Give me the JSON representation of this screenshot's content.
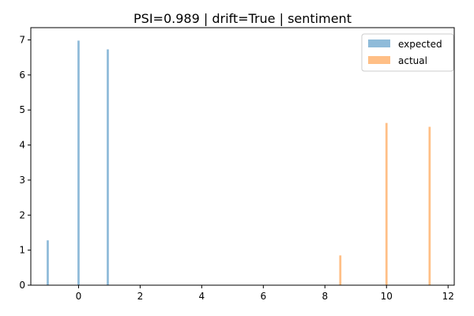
{
  "chart_data": {
    "type": "bar",
    "title": "PSI=0.989 | drift=True | sentiment",
    "xlabel": "",
    "ylabel": "",
    "xlim": [
      -1.55,
      12.2
    ],
    "ylim": [
      0,
      7.35
    ],
    "xticks": [
      0,
      2,
      4,
      6,
      8,
      10,
      12
    ],
    "yticks": [
      0,
      1,
      2,
      3,
      4,
      5,
      6,
      7
    ],
    "legend_position": "top-right",
    "grid": false,
    "bar_width": 0.07,
    "series": [
      {
        "name": "expected",
        "color": "#1f77b4",
        "opacity": 0.5,
        "points": [
          {
            "x": -1.0,
            "y": 1.28
          },
          {
            "x": 0.0,
            "y": 6.98
          },
          {
            "x": 0.95,
            "y": 6.73
          }
        ]
      },
      {
        "name": "actual",
        "color": "#ff7f0e",
        "opacity": 0.5,
        "points": [
          {
            "x": 8.5,
            "y": 0.85
          },
          {
            "x": 10.0,
            "y": 4.63
          },
          {
            "x": 11.4,
            "y": 4.52
          }
        ]
      }
    ]
  }
}
